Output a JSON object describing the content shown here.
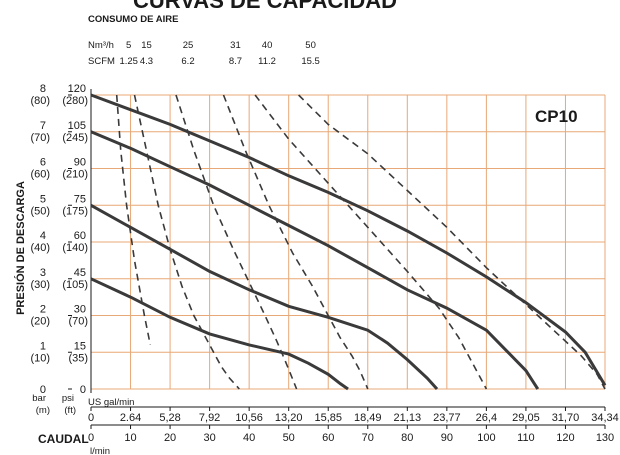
{
  "header": {
    "title": "CURVAS DE CAPACIDAD",
    "air_consumption_label": "CONSUMO DE AIRE",
    "air_units": [
      "Nm³/h",
      "SCFM"
    ]
  },
  "model_label": "CP10",
  "y_axis_title": "PRESIÓN DE DESCARGA",
  "x_axis_title": "CAUDAL",
  "bar_label": "bar",
  "bar_unit": "(m)",
  "psi_label": "psi",
  "psi_unit": "(ft)",
  "usgal_label": "US gal/min",
  "lmin_label": "l/min",
  "colors": {
    "grid": "#e8a877",
    "curve": "#3a3a3a",
    "text": "#1a1a1a"
  },
  "chart_data": {
    "type": "line",
    "title": "CURVAS DE CAPACIDAD",
    "xlabel": "CAUDAL",
    "ylabel": "PRESIÓN DE DESCARGA",
    "xlim": [
      0,
      130
    ],
    "ylim": [
      0,
      8
    ],
    "x_ticks_lmin": [
      "0",
      "10",
      "20",
      "30",
      "40",
      "50",
      "60",
      "70",
      "80",
      "90",
      "100",
      "110",
      "120",
      "130"
    ],
    "x_ticks_usgal": [
      "0",
      "2.64",
      "5,28",
      "7,92",
      "10,56",
      "13,20",
      "15,85",
      "18,49",
      "21,13",
      "23,77",
      "26,4",
      "29,05",
      "31,70",
      "34,34"
    ],
    "y_ticks_bar": [
      "0",
      "1",
      "2",
      "3",
      "4",
      "5",
      "6",
      "7",
      "8"
    ],
    "y_ticks_m": [
      "",
      "(10)",
      "(20)",
      "(30)",
      "(40)",
      "(50)",
      "(60)",
      "(70)",
      "(80)"
    ],
    "y_ticks_psi": [
      "0",
      "15",
      "30",
      "45",
      "60",
      "75",
      "90",
      "105",
      "120"
    ],
    "y_ticks_ft": [
      "",
      "(35)",
      "(70)",
      "(105)",
      "(140)",
      "(175)",
      "(210)",
      "(245)",
      "(280)"
    ],
    "air_nm3h": [
      "5",
      "15",
      "25",
      "31",
      "40",
      "50"
    ],
    "air_scfm": [
      "1.25",
      "4.3",
      "6.2",
      "8.7",
      "11.2",
      "15.5"
    ],
    "air_label_x_lmin": [
      6.5,
      11,
      21.5,
      33.5,
      41.5,
      52.5
    ],
    "pressure_curves": [
      {
        "x": [
          0,
          10,
          20,
          30,
          40,
          50,
          60,
          70,
          80,
          90,
          100,
          110,
          120,
          125,
          130
        ],
        "y": [
          8,
          7.6,
          7.2,
          6.75,
          6.3,
          5.8,
          5.35,
          4.85,
          4.3,
          3.7,
          3.05,
          2.35,
          1.55,
          1.0,
          0.1
        ]
      },
      {
        "x": [
          0,
          10,
          20,
          30,
          40,
          50,
          60,
          70,
          80,
          90,
          100,
          105,
          110,
          113
        ],
        "y": [
          7,
          6.55,
          6.05,
          5.55,
          5.0,
          4.45,
          3.9,
          3.3,
          2.7,
          2.2,
          1.6,
          1.05,
          0.5,
          0
        ]
      },
      {
        "x": [
          0,
          10,
          20,
          30,
          40,
          50,
          60,
          70,
          75,
          80,
          85,
          87.5
        ],
        "y": [
          5,
          4.4,
          3.8,
          3.2,
          2.7,
          2.25,
          1.95,
          1.6,
          1.25,
          0.8,
          0.3,
          0
        ]
      },
      {
        "x": [
          0,
          10,
          20,
          30,
          40,
          50,
          55,
          60,
          63,
          65
        ],
        "y": [
          3,
          2.5,
          1.95,
          1.5,
          1.2,
          0.95,
          0.7,
          0.4,
          0.15,
          0
        ]
      }
    ],
    "air_curves": [
      {
        "name": "5",
        "x": [
          6.5,
          7.5,
          9,
          11,
          13.5,
          15
        ],
        "y": [
          8,
          6.5,
          5,
          3.5,
          2,
          1.2
        ]
      },
      {
        "name": "15",
        "x": [
          11,
          14,
          17,
          20,
          23,
          26,
          29,
          31,
          33,
          35,
          37.5
        ],
        "y": [
          8,
          6.5,
          5,
          3.8,
          2.8,
          2.0,
          1.4,
          1.0,
          0.6,
          0.3,
          0
        ]
      },
      {
        "name": "25",
        "x": [
          21.5,
          26,
          31,
          36,
          40,
          44,
          47,
          49,
          50.5,
          52
        ],
        "y": [
          8,
          6.5,
          5,
          3.8,
          2.9,
          2.0,
          1.3,
          0.8,
          0.4,
          0
        ]
      },
      {
        "name": "31",
        "x": [
          33.5,
          39,
          45,
          51,
          56,
          60,
          63,
          66,
          68,
          70
        ],
        "y": [
          8,
          6.5,
          5,
          3.7,
          2.8,
          2.0,
          1.4,
          0.9,
          0.5,
          0
        ]
      },
      {
        "name": "40",
        "x": [
          41.5,
          50,
          60,
          70,
          80,
          88,
          93,
          96,
          98,
          100
        ],
        "y": [
          8,
          6.8,
          5.6,
          4.4,
          3.2,
          2.2,
          1.4,
          0.8,
          0.4,
          0
        ]
      },
      {
        "name": "50",
        "x": [
          52.5,
          60,
          70,
          80,
          90,
          100,
          110,
          118,
          124,
          128,
          130
        ],
        "y": [
          8,
          7.2,
          6.4,
          5.4,
          4.4,
          3.3,
          2.3,
          1.5,
          0.9,
          0.4,
          0
        ]
      }
    ]
  }
}
